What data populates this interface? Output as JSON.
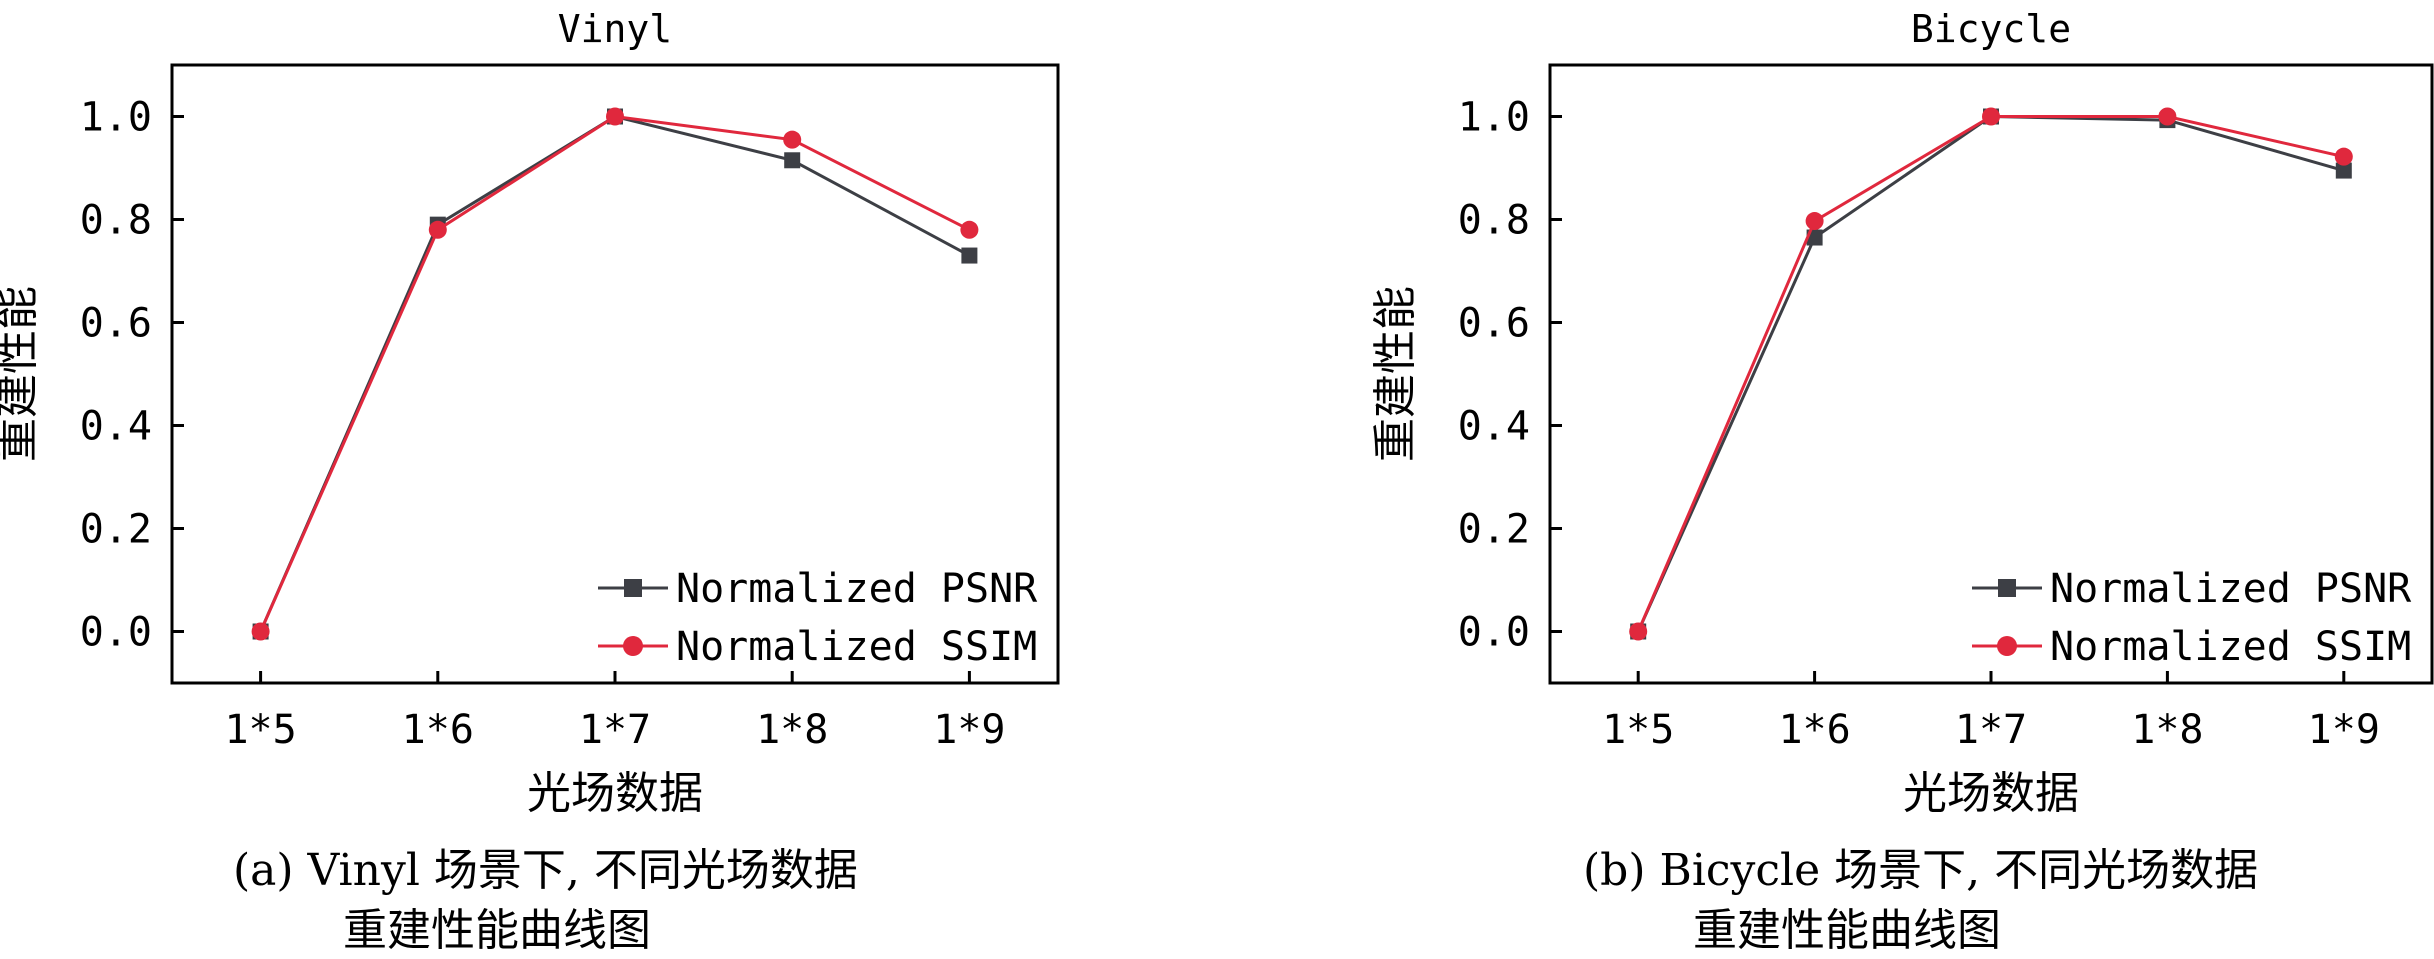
{
  "chart_data": [
    {
      "type": "line",
      "title": "Vinyl",
      "xlabel": "光场数据",
      "ylabel": "重建性能",
      "categories": [
        "1*5",
        "1*6",
        "1*7",
        "1*8",
        "1*9"
      ],
      "ylim": [
        -0.1,
        1.1
      ],
      "yticks": [
        "0.0",
        "0.2",
        "0.4",
        "0.6",
        "0.8",
        "1.0"
      ],
      "legend_position": "bottom-right",
      "grid": false,
      "caption_line1": "(a) Vinyl 场景下, 不同光场数据",
      "caption_line2": "重建性能曲线图",
      "series": [
        {
          "name": "Normalized PSNR",
          "color": "#3d3f45",
          "marker": "square",
          "values": [
            0.0,
            0.79,
            1.0,
            0.915,
            0.73
          ]
        },
        {
          "name": "Normalized SSIM",
          "color": "#e0283d",
          "marker": "circle",
          "values": [
            0.0,
            0.78,
            1.0,
            0.955,
            0.78
          ]
        }
      ]
    },
    {
      "type": "line",
      "title": "Bicycle",
      "xlabel": "光场数据",
      "ylabel": "重建性能",
      "categories": [
        "1*5",
        "1*6",
        "1*7",
        "1*8",
        "1*9"
      ],
      "ylim": [
        -0.1,
        1.1
      ],
      "yticks": [
        "0.0",
        "0.2",
        "0.4",
        "0.6",
        "0.8",
        "1.0"
      ],
      "legend_position": "bottom-right",
      "grid": false,
      "caption_line1": "(b) Bicycle 场景下, 不同光场数据",
      "caption_line2": "重建性能曲线图",
      "series": [
        {
          "name": "Normalized PSNR",
          "color": "#3d3f45",
          "marker": "square",
          "values": [
            0.0,
            0.765,
            1.0,
            0.993,
            0.895
          ]
        },
        {
          "name": "Normalized SSIM",
          "color": "#e0283d",
          "marker": "circle",
          "values": [
            0.0,
            0.797,
            1.0,
            1.0,
            0.922
          ]
        }
      ]
    }
  ]
}
